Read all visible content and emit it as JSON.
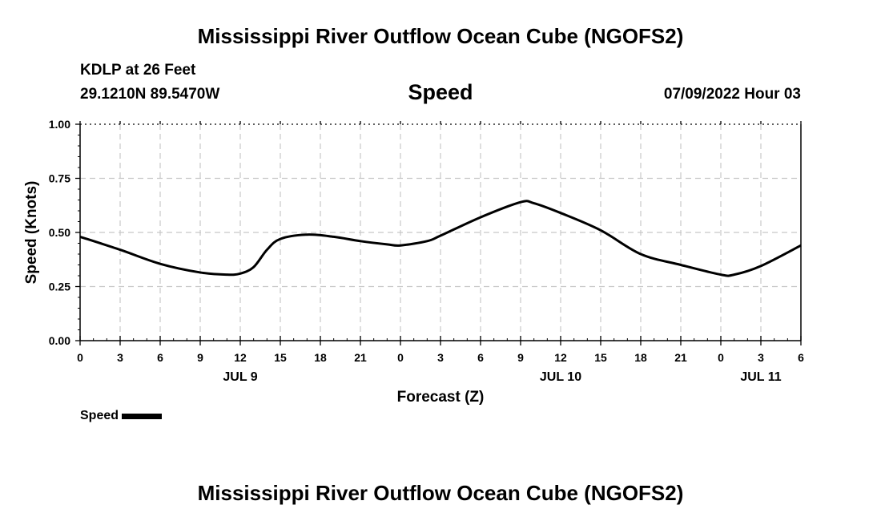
{
  "header": {
    "title": "Mississippi River Outflow Ocean Cube (NGOFS2)",
    "station": "KDLP at 26 Feet",
    "coords": "29.1210N  89.5470W",
    "parameter": "Speed",
    "datetime": "07/09/2022 Hour 03"
  },
  "footer": {
    "title": "Mississippi River Outflow Ocean Cube (NGOFS2)"
  },
  "legend": {
    "label": "Speed"
  },
  "chart_data": {
    "type": "line",
    "title": "Speed",
    "xlabel": "Forecast (Z)",
    "ylabel": "Speed (Knots)",
    "xlim": [
      0,
      54
    ],
    "ylim": [
      0,
      1
    ],
    "grid": true,
    "x_ticks": [
      0,
      3,
      6,
      9,
      12,
      15,
      18,
      21,
      24,
      27,
      30,
      33,
      36,
      39,
      42,
      45,
      48,
      51,
      54
    ],
    "x_tick_labels": [
      "0",
      "3",
      "6",
      "9",
      "12",
      "15",
      "18",
      "21",
      "0",
      "3",
      "6",
      "9",
      "12",
      "15",
      "18",
      "21",
      "0",
      "3",
      "6"
    ],
    "date_labels": [
      {
        "x": 12,
        "label": "JUL 9"
      },
      {
        "x": 36,
        "label": "JUL 10"
      },
      {
        "x": 51,
        "label": "JUL 11"
      }
    ],
    "y_ticks": [
      0.0,
      0.25,
      0.5,
      0.75,
      1.0
    ],
    "y_tick_labels": [
      "0.00",
      "0.25",
      "0.50",
      "0.75",
      "1.00"
    ],
    "series": [
      {
        "name": "Speed",
        "color": "#000000",
        "x": [
          0,
          3,
          6,
          9,
          11,
          12,
          13,
          14,
          15,
          17,
          19,
          21,
          23,
          24,
          26,
          27,
          30,
          33,
          34,
          36,
          39,
          42,
          45,
          48,
          49,
          51,
          54
        ],
        "y": [
          0.48,
          0.42,
          0.355,
          0.315,
          0.305,
          0.31,
          0.34,
          0.42,
          0.47,
          0.49,
          0.48,
          0.46,
          0.445,
          0.44,
          0.46,
          0.485,
          0.57,
          0.64,
          0.635,
          0.59,
          0.51,
          0.4,
          0.35,
          0.305,
          0.305,
          0.345,
          0.44
        ]
      }
    ]
  }
}
